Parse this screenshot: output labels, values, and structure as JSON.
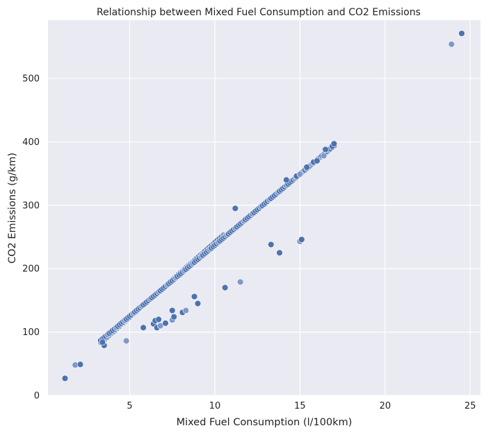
{
  "chart_data": {
    "type": "scatter",
    "title": "Relationship between Mixed Fuel Consumption and CO2 Emissions",
    "xlabel": "Mixed Fuel Consumption (l/100km)",
    "ylabel": "CO2 Emissions (g/km)",
    "xlim": [
      0.2,
      25.6
    ],
    "ylim": [
      0,
      592
    ],
    "xticks": [
      5,
      10,
      15,
      20,
      25
    ],
    "yticks": [
      0,
      100,
      200,
      300,
      400,
      500
    ],
    "grid": true,
    "colors": {
      "background": "#eaeaf2",
      "grid": "#ffffff",
      "point": "#4c72b0",
      "point_light": "#8098c8"
    },
    "trend_lines": [
      {
        "x_start": 3.3,
        "x_end": 10.5,
        "slope": 23.5,
        "intercept": 6
      },
      {
        "x_start": 3.3,
        "x_end": 17.0,
        "slope": 22.4,
        "intercept": 13,
        "step": 0.1
      }
    ],
    "points": [
      [
        1.2,
        27
      ],
      [
        1.8,
        48
      ],
      [
        2.1,
        49
      ],
      [
        3.5,
        79
      ],
      [
        3.4,
        84
      ],
      [
        4.8,
        86
      ],
      [
        5.8,
        107
      ],
      [
        6.4,
        113
      ],
      [
        6.6,
        107
      ],
      [
        6.8,
        110
      ],
      [
        6.5,
        118
      ],
      [
        6.7,
        120
      ],
      [
        7.1,
        114
      ],
      [
        7.5,
        119
      ],
      [
        7.5,
        134
      ],
      [
        7.6,
        124
      ],
      [
        8.1,
        131
      ],
      [
        8.3,
        134
      ],
      [
        8.8,
        156
      ],
      [
        9.0,
        145
      ],
      [
        10.6,
        170
      ],
      [
        11.5,
        179
      ],
      [
        11.2,
        295
      ],
      [
        13.3,
        238
      ],
      [
        13.8,
        225
      ],
      [
        15.0,
        243
      ],
      [
        15.1,
        246
      ],
      [
        14.2,
        340
      ],
      [
        14.8,
        346
      ],
      [
        15.0,
        349
      ],
      [
        15.4,
        360
      ],
      [
        15.8,
        368
      ],
      [
        16.0,
        370
      ],
      [
        16.4,
        378
      ],
      [
        16.5,
        388
      ],
      [
        16.9,
        393
      ],
      [
        17.0,
        397
      ],
      [
        23.9,
        554
      ],
      [
        24.5,
        571
      ]
    ]
  }
}
